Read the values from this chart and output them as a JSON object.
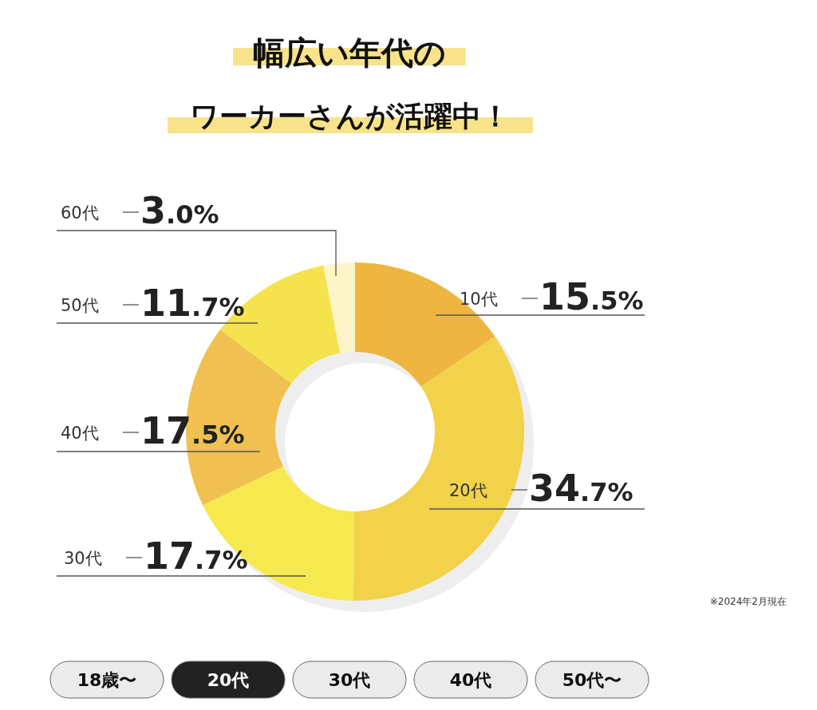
{
  "chart_data": {
    "type": "donut",
    "title": "幅広い年代の",
    "subtitle": "ワーカーさんが活躍中！",
    "categories": [
      "10代",
      "20代",
      "30代",
      "40代",
      "50代",
      "60代"
    ],
    "values": [
      15.5,
      34.7,
      17.7,
      17.5,
      11.7,
      3.0
    ],
    "value_labels": [
      "15.5%",
      "34.7%",
      "17.7%",
      "17.5%",
      "11.7%",
      "3.0%"
    ],
    "colors": [
      "#eeb640",
      "#f2d24a",
      "#f6e84f",
      "#f0c050",
      "#f5e34e",
      "#fdf5c8"
    ],
    "annotations": [
      "※2024年2月現在",
      "18歳〜",
      "20代",
      "30代",
      "40代",
      "50代〜"
    ]
  }
}
